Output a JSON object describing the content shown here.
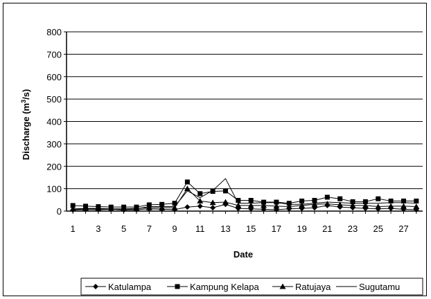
{
  "chart_data": {
    "type": "line",
    "xlabel": "Date",
    "ylabel": "Discharge (m³/s)",
    "ylabel_parts": [
      "Discharge (m",
      "3",
      "/s)"
    ],
    "ylim": [
      0,
      800
    ],
    "yticks": [
      0,
      100,
      200,
      300,
      400,
      500,
      600,
      700,
      800
    ],
    "xlim": [
      0.5,
      28.5
    ],
    "xticks": [
      1,
      3,
      5,
      7,
      9,
      11,
      13,
      15,
      17,
      19,
      21,
      23,
      25,
      27
    ],
    "grid": true,
    "legend_position": "bottom",
    "x": [
      1,
      2,
      3,
      4,
      5,
      6,
      7,
      8,
      9,
      10,
      11,
      12,
      13,
      14,
      15,
      16,
      17,
      18,
      19,
      20,
      21,
      22,
      23,
      24,
      25,
      26,
      27,
      28
    ],
    "series": [
      {
        "name": "Katulampa",
        "marker": "diamond",
        "color": "#000000",
        "values": [
          5,
          7,
          6,
          8,
          5,
          6,
          10,
          8,
          7,
          18,
          22,
          15,
          30,
          12,
          10,
          8,
          6,
          10,
          12,
          15,
          25,
          18,
          15,
          12,
          10,
          12,
          8,
          6
        ]
      },
      {
        "name": "Kampung Kelapa",
        "marker": "square",
        "color": "#000000",
        "values": [
          25,
          22,
          20,
          18,
          18,
          18,
          28,
          30,
          35,
          130,
          78,
          88,
          90,
          48,
          48,
          40,
          40,
          35,
          45,
          48,
          62,
          55,
          42,
          42,
          55,
          45,
          45,
          45
        ]
      },
      {
        "name": "Ratujaya",
        "marker": "triangle",
        "color": "#000000",
        "values": [
          10,
          12,
          12,
          10,
          10,
          12,
          15,
          15,
          15,
          100,
          45,
          38,
          40,
          25,
          25,
          25,
          22,
          20,
          25,
          30,
          32,
          28,
          25,
          25,
          20,
          22,
          22,
          20
        ]
      },
      {
        "name": "Sugutamu",
        "marker": "none",
        "color": "#000000",
        "values": [
          8,
          10,
          10,
          8,
          8,
          10,
          20,
          20,
          20,
          90,
          60,
          92,
          145,
          35,
          35,
          38,
          38,
          30,
          30,
          35,
          40,
          38,
          35,
          35,
          35,
          38,
          38,
          35
        ]
      }
    ]
  }
}
